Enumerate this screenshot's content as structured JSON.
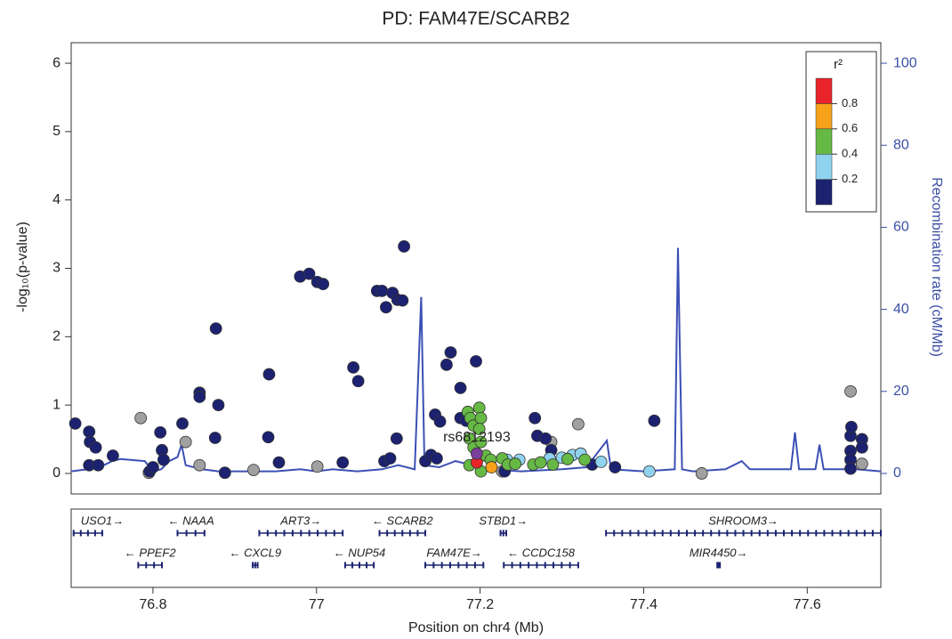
{
  "chart_data": {
    "type": "scatter",
    "title": "PD: FAM47E/SCARB2",
    "x_label": "Position on chr4 (Mb)",
    "y_label": "-log₁₀(p-value)",
    "y2_label": "Recombination rate (cM/Mb)",
    "xlim": [
      76.7,
      77.69
    ],
    "xticks": [
      76.8,
      77,
      77.2,
      77.4,
      77.6
    ],
    "ylim": [
      -0.3,
      6.3
    ],
    "yticks": [
      0,
      1,
      2,
      3,
      4,
      5,
      6
    ],
    "y2lim": [
      -5,
      105
    ],
    "y2ticks": [
      0,
      20,
      40,
      60,
      80,
      100
    ],
    "y2_color": "#3b4ea5",
    "grid": false,
    "annotation": "rs6812193",
    "legend": {
      "title": "r²",
      "position": "top-right",
      "range": [
        0,
        1
      ],
      "ticks": [
        0.2,
        0.4,
        0.6,
        0.8
      ],
      "colors": [
        "#1c2270",
        "#8fd3ef",
        "#66b944",
        "#f7a21b",
        "#e8242a"
      ]
    },
    "series": [
      {
        "color": "#3b50b5",
        "axis": "y2",
        "style": "line",
        "x": [
          76.7,
          76.72,
          76.74,
          76.75,
          76.76,
          76.79,
          76.8,
          76.81,
          76.82,
          76.83,
          76.835,
          76.84,
          76.86,
          76.88,
          76.9,
          76.95,
          76.98,
          77.0,
          77.02,
          77.05,
          77.08,
          77.1,
          77.12,
          77.128,
          77.132,
          77.15,
          77.17,
          77.19,
          77.21,
          77.25,
          77.3,
          77.33,
          77.355,
          77.36,
          77.4,
          77.438,
          77.442,
          77.447,
          77.46,
          77.5,
          77.52,
          77.53,
          77.58,
          77.585,
          77.59,
          77.61,
          77.615,
          77.62,
          77.66,
          77.69
        ],
        "values": [
          0.5,
          1,
          2,
          3,
          3.5,
          3,
          0.5,
          1,
          3,
          4,
          7,
          2,
          1,
          0.5,
          0.5,
          0.5,
          1,
          0.5,
          1,
          0.5,
          1,
          2,
          1,
          43,
          2,
          1.5,
          3,
          2,
          1,
          0.5,
          1,
          1.5,
          8,
          1,
          0.5,
          1,
          55,
          1,
          0.5,
          1,
          3,
          1,
          1,
          10,
          1,
          1,
          7,
          1,
          1,
          0.5
        ]
      },
      {
        "color": "#a0a0a0",
        "x": [
          76.785,
          76.795,
          76.84,
          76.857,
          76.923,
          77.001,
          77.227,
          77.287,
          77.32,
          77.471,
          77.653,
          77.667
        ],
        "values": [
          0.81,
          0.01,
          0.46,
          0.12,
          0.05,
          0.1,
          0.03,
          0.46,
          0.72,
          0.0,
          1.2,
          0.14
        ]
      },
      {
        "color": "#1c2270",
        "x": [
          76.705,
          76.722,
          76.723,
          76.73,
          76.722,
          76.733,
          76.751,
          76.796,
          76.8,
          76.809,
          76.811,
          76.813,
          76.836,
          76.857,
          76.857,
          76.877,
          76.88,
          76.876,
          76.888,
          76.942,
          76.941,
          76.954,
          76.98,
          76.991,
          77.001,
          77.008,
          77.051,
          77.045,
          77.032,
          77.074,
          77.08,
          77.085,
          77.093,
          77.099,
          77.105,
          77.107,
          77.098,
          77.083,
          77.09,
          77.133,
          77.14,
          77.147,
          77.145,
          77.151,
          77.164,
          77.159,
          77.176,
          77.195,
          77.176,
          77.183,
          77.23,
          77.267,
          77.27,
          77.28,
          77.287,
          77.337,
          77.365,
          77.413,
          77.653,
          77.653,
          77.653,
          77.653,
          77.667,
          77.667,
          77.654
        ],
        "values": [
          0.73,
          0.61,
          0.46,
          0.38,
          0.12,
          0.12,
          0.26,
          0.03,
          0.09,
          0.6,
          0.34,
          0.2,
          0.73,
          1.18,
          1.12,
          2.12,
          1.0,
          0.52,
          0.01,
          1.45,
          0.53,
          0.16,
          2.88,
          2.92,
          2.8,
          2.77,
          1.35,
          1.55,
          0.16,
          2.67,
          2.67,
          2.43,
          2.64,
          2.54,
          2.53,
          3.32,
          0.51,
          0.18,
          0.22,
          0.18,
          0.27,
          0.22,
          0.86,
          0.76,
          1.77,
          1.59,
          1.25,
          1.64,
          0.81,
          0.77,
          0.03,
          0.81,
          0.55,
          0.51,
          0.34,
          0.13,
          0.09,
          0.77,
          0.55,
          0.33,
          0.2,
          0.07,
          0.5,
          0.38,
          0.68
        ]
      },
      {
        "color": "#8fd3ef",
        "x": [
          77.233,
          77.248,
          77.285,
          77.3,
          77.313,
          77.323,
          77.348,
          77.407
        ],
        "values": [
          0.2,
          0.2,
          0.22,
          0.23,
          0.27,
          0.29,
          0.17,
          0.03
        ]
      },
      {
        "color": "#66b944",
        "x": [
          77.185,
          77.188,
          77.192,
          77.199,
          77.201,
          77.199,
          77.187,
          77.192,
          77.201,
          77.187,
          77.201,
          77.207,
          77.213,
          77.227,
          77.234,
          77.243,
          77.265,
          77.274,
          77.289,
          77.307,
          77.328
        ],
        "values": [
          0.9,
          0.81,
          0.7,
          0.96,
          0.81,
          0.65,
          0.51,
          0.38,
          0.46,
          0.12,
          0.03,
          0.26,
          0.2,
          0.22,
          0.13,
          0.14,
          0.13,
          0.16,
          0.13,
          0.21,
          0.2
        ]
      },
      {
        "color": "#f7a21b",
        "x": [
          77.214
        ],
        "values": [
          0.09
        ]
      },
      {
        "color": "#e8242a",
        "x": [
          77.196
        ],
        "values": [
          0.16
        ]
      },
      {
        "color": "#7b3f9e",
        "index": true,
        "x": [
          77.196
        ],
        "values": [
          0.29
        ]
      }
    ],
    "gene_rows": [
      [
        {
          "label": "USO1→",
          "start": 76.703,
          "end": 76.738
        },
        {
          "label": "← NAAA",
          "start": 76.83,
          "end": 76.863
        },
        {
          "label": "ART3→",
          "start": 76.93,
          "end": 77.032
        },
        {
          "label": "← SCARB2",
          "start": 77.077,
          "end": 77.133
        },
        {
          "label": "STBD1→",
          "start": 77.225,
          "end": 77.232
        },
        {
          "label": "SHROOM3→",
          "start": 77.354,
          "end": 77.69
        }
      ],
      [
        {
          "label": "← PPEF2",
          "start": 76.782,
          "end": 76.811
        },
        {
          "label": "← CXCL9",
          "start": 76.922,
          "end": 76.928
        },
        {
          "label": "← NUP54",
          "start": 77.035,
          "end": 77.07
        },
        {
          "label": "FAM47E→",
          "start": 77.133,
          "end": 77.204
        },
        {
          "label": "← CCDC158",
          "start": 77.229,
          "end": 77.32
        },
        {
          "label": "MIR4450→",
          "start": 77.49,
          "end": 77.492
        }
      ]
    ]
  }
}
